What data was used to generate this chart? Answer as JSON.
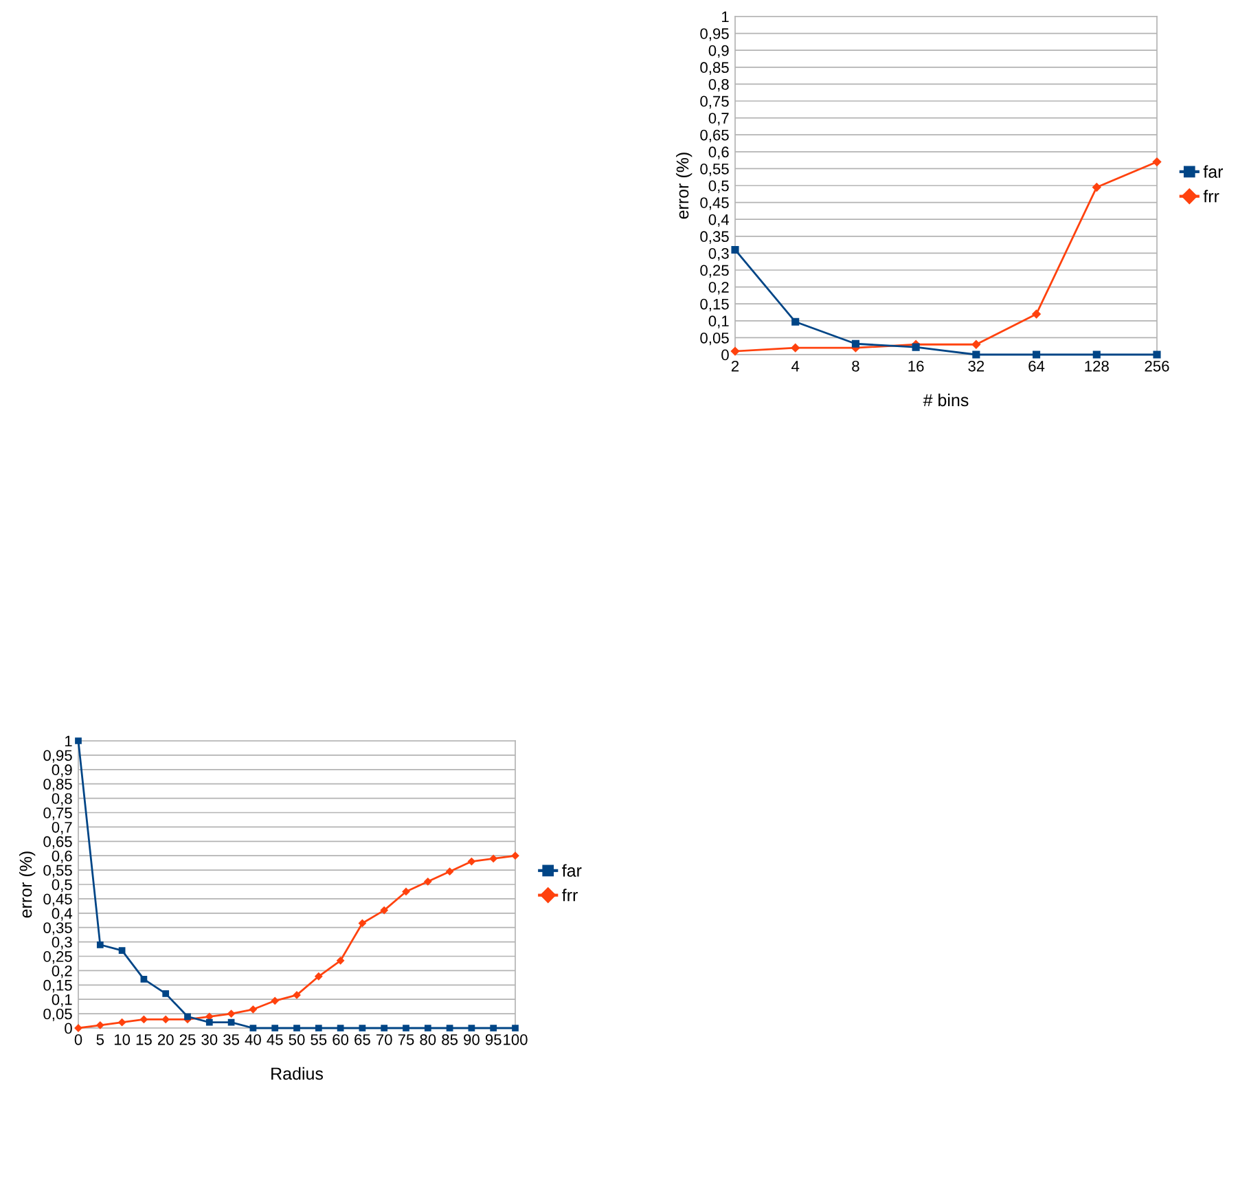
{
  "chart_data": [
    {
      "type": "line",
      "xlabel": "# bins",
      "ylabel": "error (%)",
      "categories": [
        "2",
        "4",
        "8",
        "16",
        "32",
        "64",
        "128",
        "256"
      ],
      "series": [
        {
          "name": "far",
          "color": "#004586",
          "marker": "square",
          "values": [
            0.31,
            0.097,
            0.032,
            0.022,
            0,
            0,
            0,
            0
          ]
        },
        {
          "name": "frr",
          "color": "#ff420e",
          "marker": "diamond",
          "values": [
            0.01,
            0.02,
            0.02,
            0.03,
            0.03,
            0.12,
            0.495,
            0.57
          ]
        }
      ],
      "ylim": [
        0,
        1
      ],
      "yticks": [
        0,
        {
          "value": 0.05,
          "label": "0,05"
        },
        {
          "value": 0.1,
          "label": "0,1"
        },
        {
          "value": 0.15,
          "label": "0,15"
        },
        {
          "value": 0.2,
          "label": "0,2"
        },
        {
          "value": 0.25,
          "label": "0,25"
        },
        {
          "value": 0.3,
          "label": "0,3"
        },
        {
          "value": 0.35,
          "label": "0,35"
        },
        {
          "value": 0.4,
          "label": "0,4"
        },
        {
          "value": 0.45,
          "label": "0,45"
        },
        {
          "value": 0.5,
          "label": "0,5"
        },
        {
          "value": 0.55,
          "label": "0,55"
        },
        {
          "value": 0.6,
          "label": "0,6"
        },
        {
          "value": 0.65,
          "label": "0,65"
        },
        {
          "value": 0.7,
          "label": "0,7"
        },
        {
          "value": 0.75,
          "label": "0,75"
        },
        {
          "value": 0.8,
          "label": "0,8"
        },
        {
          "value": 0.85,
          "label": "0,85"
        },
        {
          "value": 0.9,
          "label": "0,9"
        },
        {
          "value": 0.95,
          "label": "0,95"
        },
        1
      ],
      "grid": "y",
      "legend": "right",
      "line_style": "solid"
    },
    {
      "type": "line",
      "xlabel": "Radius",
      "ylabel": "error (%)",
      "categories": [
        "0",
        "5",
        "10",
        "15",
        "20",
        "25",
        "30",
        "35",
        "40",
        "45",
        "50",
        "55",
        "60",
        "65",
        "70",
        "75",
        "80",
        "85",
        "90",
        "95",
        "100"
      ],
      "series": [
        {
          "name": "far",
          "color": "#004586",
          "marker": "square",
          "values": [
            1,
            0.29,
            0.27,
            0.17,
            0.12,
            0.04,
            0.02,
            0.02,
            0,
            0,
            0,
            0,
            0,
            0,
            0,
            0,
            0,
            0,
            0,
            0,
            0
          ]
        },
        {
          "name": "frr",
          "color": "#ff420e",
          "marker": "diamond",
          "values": [
            0,
            0.01,
            0.02,
            0.03,
            0.03,
            0.03,
            0.04,
            0.05,
            0.065,
            0.095,
            0.115,
            0.18,
            0.235,
            0.365,
            0.41,
            0.475,
            0.51,
            0.545,
            0.58,
            0.59,
            0.6
          ]
        }
      ],
      "ylim": [
        0,
        1
      ],
      "yticks": [
        0,
        {
          "value": 0.05,
          "label": "0,05"
        },
        {
          "value": 0.1,
          "label": "0,1"
        },
        {
          "value": 0.15,
          "label": "0,15"
        },
        {
          "value": 0.2,
          "label": "0,2"
        },
        {
          "value": 0.25,
          "label": "0,25"
        },
        {
          "value": 0.3,
          "label": "0,3"
        },
        {
          "value": 0.35,
          "label": "0,35"
        },
        {
          "value": 0.4,
          "label": "0,4"
        },
        {
          "value": 0.45,
          "label": "0,45"
        },
        {
          "value": 0.5,
          "label": "0,5"
        },
        {
          "value": 0.55,
          "label": "0,55"
        },
        {
          "value": 0.6,
          "label": "0,6"
        },
        {
          "value": 0.65,
          "label": "0,65"
        },
        {
          "value": 0.7,
          "label": "0,7"
        },
        {
          "value": 0.75,
          "label": "0,75"
        },
        {
          "value": 0.8,
          "label": "0,8"
        },
        {
          "value": 0.85,
          "label": "0,85"
        },
        {
          "value": 0.9,
          "label": "0,9"
        },
        {
          "value": 0.95,
          "label": "0,95"
        },
        1
      ],
      "grid": "y",
      "legend": "right",
      "line_style": "solid"
    }
  ]
}
